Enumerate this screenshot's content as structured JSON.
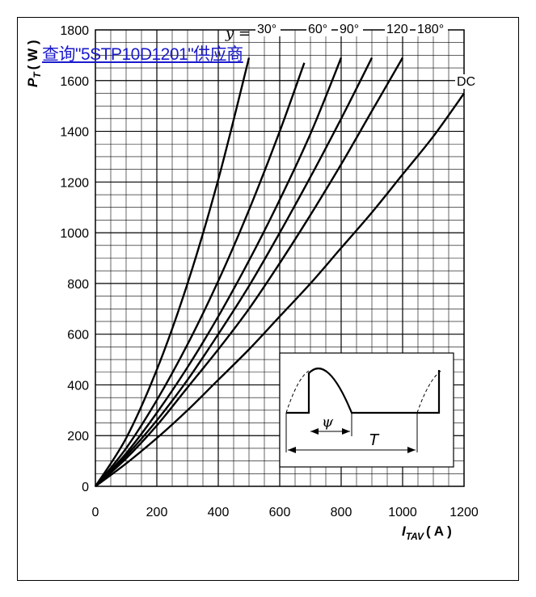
{
  "chart_data": {
    "type": "line",
    "title": "",
    "xlabel": "I",
    "xlabel_sub": "TAV",
    "xunit": "( A )",
    "ylabel": "P",
    "ylabel_sub": "T",
    "yunit": "( W )",
    "xlim": [
      0,
      1200
    ],
    "ylim": [
      0,
      1800
    ],
    "x_ticks": [
      "0",
      "200",
      "400",
      "600",
      "800",
      "1000",
      "1200"
    ],
    "y_ticks": [
      "0",
      "200",
      "400",
      "600",
      "800",
      "1000",
      "1200",
      "1400",
      "1600",
      "1800"
    ],
    "grid": true,
    "curve_label_prefix": "y = ",
    "series": [
      {
        "name": "30°",
        "x": [
          0,
          100,
          200,
          300,
          400,
          500
        ],
        "y": [
          0,
          190,
          460,
          800,
          1210,
          1690
        ]
      },
      {
        "name": "60°",
        "x": [
          0,
          100,
          200,
          300,
          400,
          500,
          600,
          680
        ],
        "y": [
          0,
          150,
          340,
          560,
          810,
          1090,
          1400,
          1670
        ]
      },
      {
        "name": "90°",
        "x": [
          0,
          100,
          200,
          300,
          400,
          500,
          600,
          700,
          800
        ],
        "y": [
          0,
          130,
          290,
          470,
          670,
          890,
          1130,
          1390,
          1690
        ]
      },
      {
        "name": "120",
        "x": [
          0,
          100,
          200,
          300,
          400,
          500,
          600,
          700,
          800,
          900
        ],
        "y": [
          0,
          120,
          260,
          420,
          600,
          790,
          1000,
          1220,
          1450,
          1690
        ]
      },
      {
        "name": "180°",
        "x": [
          0,
          100,
          200,
          300,
          400,
          500,
          600,
          700,
          800,
          900,
          1000
        ],
        "y": [
          0,
          110,
          240,
          390,
          540,
          700,
          880,
          1070,
          1270,
          1480,
          1690
        ]
      },
      {
        "name": "DC",
        "x": [
          0,
          100,
          200,
          300,
          400,
          500,
          600,
          700,
          800,
          900,
          1000,
          1100,
          1200
        ],
        "y": [
          0,
          90,
          190,
          300,
          420,
          540,
          670,
          800,
          940,
          1080,
          1230,
          1380,
          1550
        ]
      }
    ],
    "inset": {
      "type": "diagram",
      "psi_label": "ψ",
      "period_label": "T"
    }
  },
  "watermark_text": "查询\"5STP10D1201\"供应商"
}
